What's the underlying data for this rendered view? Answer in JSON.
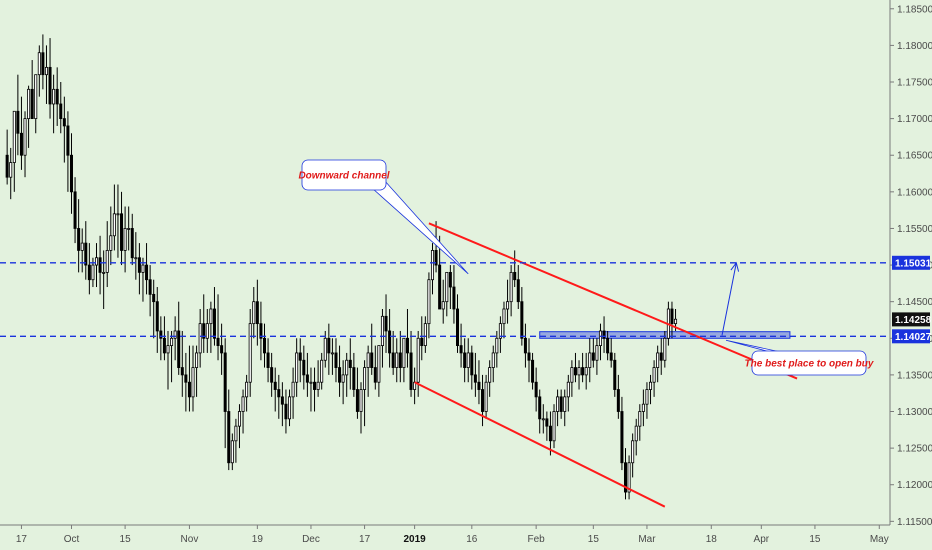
{
  "chart_data": {
    "type": "candlestick",
    "title": "",
    "xlabel": "",
    "ylabel": "",
    "ylim": [
      1.1145,
      1.1862
    ],
    "xlim": [
      -2,
      247
    ],
    "grid": false,
    "y_ticks": [
      1.115,
      1.12,
      1.125,
      1.13,
      1.135,
      1.14,
      1.145,
      1.15,
      1.155,
      1.16,
      1.165,
      1.17,
      1.175,
      1.18,
      1.185
    ],
    "y_tick_labels": [
      "1.11500",
      "1.12000",
      "1.12500",
      "1.13000",
      "1.13500",
      "1.14000",
      "1.14500",
      "1.15000",
      "1.15500",
      "1.16000",
      "1.16500",
      "1.17000",
      "1.17500",
      "1.18000",
      "1.18500"
    ],
    "x_ticks": [
      {
        "label": "17",
        "index": 4,
        "bold": false
      },
      {
        "label": "Oct",
        "index": 18,
        "bold": false
      },
      {
        "label": "15",
        "index": 33,
        "bold": false
      },
      {
        "label": "Nov",
        "index": 51,
        "bold": false
      },
      {
        "label": "19",
        "index": 70,
        "bold": false
      },
      {
        "label": "Dec",
        "index": 85,
        "bold": false
      },
      {
        "label": "17",
        "index": 100,
        "bold": false
      },
      {
        "label": "2019",
        "index": 114,
        "bold": true
      },
      {
        "label": "16",
        "index": 130,
        "bold": false
      },
      {
        "label": "Feb",
        "index": 148,
        "bold": false
      },
      {
        "label": "15",
        "index": 164,
        "bold": false
      },
      {
        "label": "Mar",
        "index": 179,
        "bold": false
      },
      {
        "label": "18",
        "index": 197,
        "bold": false
      },
      {
        "label": "Apr",
        "index": 211,
        "bold": false
      },
      {
        "label": "15",
        "index": 226,
        "bold": false
      },
      {
        "label": "May",
        "index": 244,
        "bold": false
      }
    ],
    "candles": {
      "open": [
        1.165,
        1.162,
        1.164,
        1.171,
        1.168,
        1.165,
        1.17,
        1.174,
        1.17,
        1.176,
        1.179,
        1.176,
        1.177,
        1.172,
        1.174,
        1.172,
        1.17,
        1.169,
        1.165,
        1.16,
        1.155,
        1.152,
        1.153,
        1.15,
        1.148,
        1.15,
        1.151,
        1.149,
        1.149,
        1.152,
        1.154,
        1.157,
        1.157,
        1.152,
        1.155,
        1.155,
        1.151,
        1.151,
        1.149,
        1.15,
        1.148,
        1.146,
        1.145,
        1.141,
        1.14,
        1.138,
        1.139,
        1.14,
        1.141,
        1.136,
        1.135,
        1.134,
        1.132,
        1.136,
        1.138,
        1.142,
        1.14,
        1.142,
        1.144,
        1.14,
        1.139,
        1.138,
        1.13,
        1.123,
        1.126,
        1.128,
        1.13,
        1.132,
        1.134,
        1.142,
        1.145,
        1.142,
        1.14,
        1.138,
        1.136,
        1.134,
        1.133,
        1.132,
        1.131,
        1.129,
        1.132,
        1.134,
        1.138,
        1.137,
        1.135,
        1.134,
        1.134,
        1.133,
        1.134,
        1.137,
        1.14,
        1.138,
        1.138,
        1.136,
        1.134,
        1.135,
        1.137,
        1.136,
        1.133,
        1.13,
        1.133,
        1.136,
        1.138,
        1.136,
        1.134,
        1.139,
        1.143,
        1.141,
        1.138,
        1.136,
        1.138,
        1.136,
        1.14,
        1.138,
        1.133,
        1.134,
        1.14,
        1.139,
        1.142,
        1.148,
        1.152,
        1.15,
        1.144,
        1.145,
        1.149,
        1.147,
        1.144,
        1.139,
        1.138,
        1.136,
        1.138,
        1.135,
        1.134,
        1.133,
        1.13,
        1.134,
        1.136,
        1.138,
        1.14,
        1.142,
        1.144,
        1.145,
        1.149,
        1.148,
        1.145,
        1.14,
        1.138,
        1.137,
        1.134,
        1.132,
        1.129,
        1.129,
        1.128,
        1.126,
        1.13,
        1.132,
        1.13,
        1.132,
        1.134,
        1.136,
        1.135,
        1.136,
        1.135,
        1.136,
        1.138,
        1.137,
        1.139,
        1.141,
        1.14,
        1.138,
        1.137,
        1.133,
        1.13,
        1.123,
        1.119,
        1.123,
        1.126,
        1.128,
        1.13,
        1.131,
        1.133,
        1.134,
        1.136,
        1.138,
        1.137,
        1.14,
        1.144,
        1.142
      ],
      "high": [
        1.1685,
        1.166,
        1.168,
        1.176,
        1.173,
        1.171,
        1.1745,
        1.178,
        1.176,
        1.18,
        1.1815,
        1.18,
        1.181,
        1.176,
        1.177,
        1.175,
        1.173,
        1.171,
        1.168,
        1.162,
        1.159,
        1.155,
        1.156,
        1.153,
        1.151,
        1.153,
        1.154,
        1.152,
        1.156,
        1.158,
        1.161,
        1.161,
        1.16,
        1.158,
        1.158,
        1.157,
        1.1545,
        1.153,
        1.151,
        1.153,
        1.15,
        1.148,
        1.147,
        1.143,
        1.143,
        1.141,
        1.141,
        1.143,
        1.145,
        1.141,
        1.138,
        1.139,
        1.139,
        1.139,
        1.144,
        1.146,
        1.144,
        1.145,
        1.147,
        1.146,
        1.142,
        1.14,
        1.133,
        1.127,
        1.129,
        1.131,
        1.133,
        1.135,
        1.144,
        1.147,
        1.148,
        1.145,
        1.142,
        1.14,
        1.138,
        1.136,
        1.135,
        1.134,
        1.133,
        1.133,
        1.136,
        1.14,
        1.14,
        1.139,
        1.138,
        1.136,
        1.136,
        1.137,
        1.138,
        1.141,
        1.142,
        1.14,
        1.14,
        1.139,
        1.137,
        1.138,
        1.14,
        1.138,
        1.136,
        1.134,
        1.137,
        1.139,
        1.142,
        1.139,
        1.138,
        1.144,
        1.146,
        1.144,
        1.141,
        1.14,
        1.141,
        1.14,
        1.144,
        1.141,
        1.136,
        1.141,
        1.143,
        1.143,
        1.149,
        1.153,
        1.156,
        1.154,
        1.148,
        1.149,
        1.15,
        1.15,
        1.146,
        1.142,
        1.14,
        1.14,
        1.139,
        1.138,
        1.137,
        1.135,
        1.135,
        1.137,
        1.139,
        1.141,
        1.143,
        1.145,
        1.148,
        1.15,
        1.152,
        1.15,
        1.147,
        1.142,
        1.14,
        1.138,
        1.136,
        1.133,
        1.131,
        1.13,
        1.13,
        1.131,
        1.133,
        1.133,
        1.133,
        1.135,
        1.137,
        1.138,
        1.137,
        1.138,
        1.138,
        1.14,
        1.14,
        1.14,
        1.142,
        1.143,
        1.141,
        1.14,
        1.138,
        1.135,
        1.132,
        1.125,
        1.124,
        1.127,
        1.129,
        1.131,
        1.133,
        1.134,
        1.135,
        1.137,
        1.139,
        1.14,
        1.141,
        1.145,
        1.145,
        1.144
      ],
      "low": [
        1.161,
        1.159,
        1.16,
        1.165,
        1.163,
        1.162,
        1.166,
        1.17,
        1.168,
        1.173,
        1.174,
        1.172,
        1.17,
        1.168,
        1.169,
        1.168,
        1.164,
        1.16,
        1.157,
        1.153,
        1.149,
        1.149,
        1.148,
        1.146,
        1.147,
        1.147,
        1.146,
        1.144,
        1.147,
        1.15,
        1.152,
        1.151,
        1.15,
        1.149,
        1.152,
        1.15,
        1.148,
        1.146,
        1.145,
        1.146,
        1.143,
        1.14,
        1.138,
        1.137,
        1.137,
        1.133,
        1.134,
        1.137,
        1.135,
        1.132,
        1.13,
        1.13,
        1.13,
        1.132,
        1.136,
        1.138,
        1.138,
        1.138,
        1.139,
        1.137,
        1.135,
        1.125,
        1.122,
        1.122,
        1.123,
        1.125,
        1.127,
        1.13,
        1.132,
        1.14,
        1.139,
        1.137,
        1.136,
        1.134,
        1.132,
        1.13,
        1.129,
        1.128,
        1.127,
        1.128,
        1.129,
        1.132,
        1.134,
        1.133,
        1.132,
        1.13,
        1.13,
        1.132,
        1.133,
        1.136,
        1.135,
        1.135,
        1.134,
        1.132,
        1.131,
        1.132,
        1.133,
        1.132,
        1.129,
        1.127,
        1.128,
        1.132,
        1.135,
        1.133,
        1.132,
        1.136,
        1.138,
        1.136,
        1.135,
        1.134,
        1.134,
        1.134,
        1.136,
        1.132,
        1.131,
        1.132,
        1.137,
        1.138,
        1.14,
        1.146,
        1.149,
        1.144,
        1.142,
        1.143,
        1.144,
        1.142,
        1.138,
        1.136,
        1.134,
        1.134,
        1.133,
        1.132,
        1.131,
        1.128,
        1.129,
        1.132,
        1.134,
        1.136,
        1.138,
        1.14,
        1.142,
        1.143,
        1.147,
        1.144,
        1.139,
        1.136,
        1.134,
        1.133,
        1.13,
        1.127,
        1.127,
        1.126,
        1.124,
        1.125,
        1.128,
        1.129,
        1.128,
        1.13,
        1.132,
        1.134,
        1.133,
        1.134,
        1.133,
        1.134,
        1.136,
        1.135,
        1.137,
        1.138,
        1.137,
        1.136,
        1.132,
        1.129,
        1.122,
        1.118,
        1.118,
        1.121,
        1.124,
        1.126,
        1.128,
        1.129,
        1.131,
        1.132,
        1.134,
        1.135,
        1.136,
        1.139,
        1.14,
        1.141
      ],
      "close": [
        1.162,
        1.164,
        1.171,
        1.168,
        1.165,
        1.17,
        1.174,
        1.17,
        1.176,
        1.179,
        1.176,
        1.177,
        1.172,
        1.174,
        1.172,
        1.17,
        1.169,
        1.165,
        1.16,
        1.155,
        1.152,
        1.153,
        1.15,
        1.148,
        1.15,
        1.151,
        1.149,
        1.149,
        1.152,
        1.154,
        1.157,
        1.157,
        1.152,
        1.155,
        1.155,
        1.151,
        1.151,
        1.149,
        1.15,
        1.148,
        1.146,
        1.145,
        1.141,
        1.14,
        1.138,
        1.139,
        1.14,
        1.141,
        1.136,
        1.135,
        1.134,
        1.132,
        1.136,
        1.138,
        1.142,
        1.14,
        1.142,
        1.144,
        1.14,
        1.139,
        1.138,
        1.13,
        1.123,
        1.126,
        1.128,
        1.13,
        1.132,
        1.134,
        1.142,
        1.145,
        1.142,
        1.14,
        1.138,
        1.136,
        1.134,
        1.133,
        1.132,
        1.131,
        1.129,
        1.132,
        1.134,
        1.138,
        1.137,
        1.135,
        1.134,
        1.134,
        1.133,
        1.134,
        1.137,
        1.14,
        1.138,
        1.138,
        1.136,
        1.134,
        1.135,
        1.137,
        1.136,
        1.133,
        1.13,
        1.133,
        1.136,
        1.138,
        1.136,
        1.134,
        1.139,
        1.143,
        1.141,
        1.138,
        1.136,
        1.138,
        1.136,
        1.14,
        1.138,
        1.133,
        1.134,
        1.14,
        1.139,
        1.142,
        1.148,
        1.152,
        1.15,
        1.144,
        1.145,
        1.149,
        1.147,
        1.144,
        1.139,
        1.138,
        1.136,
        1.138,
        1.135,
        1.134,
        1.133,
        1.13,
        1.134,
        1.136,
        1.138,
        1.14,
        1.142,
        1.144,
        1.145,
        1.149,
        1.148,
        1.145,
        1.14,
        1.138,
        1.137,
        1.134,
        1.132,
        1.129,
        1.129,
        1.128,
        1.126,
        1.13,
        1.132,
        1.13,
        1.132,
        1.134,
        1.136,
        1.135,
        1.136,
        1.135,
        1.136,
        1.138,
        1.137,
        1.139,
        1.141,
        1.14,
        1.138,
        1.137,
        1.133,
        1.13,
        1.123,
        1.119,
        1.123,
        1.126,
        1.128,
        1.13,
        1.131,
        1.133,
        1.134,
        1.136,
        1.138,
        1.137,
        1.14,
        1.144,
        1.142,
        1.1426
      ]
    },
    "levels": [
      {
        "value": 1.15031,
        "label": "1.15031",
        "style": "dashed",
        "color": "#1a33dd"
      },
      {
        "value": 1.14027,
        "label": "1.14027",
        "style": "dashed",
        "color": "#1a33dd"
      }
    ],
    "last_price": {
      "value": 1.14258,
      "label": "1.14258"
    },
    "zone": {
      "x_start": 149,
      "x_end": 219,
      "y_low": 1.14,
      "y_high": 1.1409
    },
    "trendlines": [
      {
        "name": "channel-upper",
        "from": [
          118,
          1.1557
        ],
        "to": [
          221,
          1.1345
        ],
        "color": "#ff1a1a"
      },
      {
        "name": "channel-lower",
        "from": [
          114,
          1.134
        ],
        "to": [
          184,
          1.117
        ],
        "color": "#ff1a1a"
      }
    ],
    "arrow": {
      "from": [
        200,
        1.1404
      ],
      "to": [
        204,
        1.1503
      ],
      "color": "#1a33dd"
    },
    "annotations": [
      {
        "name": "downward-channel",
        "text": "Downward channel",
        "anchor": [
          129,
          1.1488
        ]
      },
      {
        "name": "best-place",
        "text": "The best place to open buy",
        "anchor": [
          200,
          1.14
        ]
      }
    ],
    "colors": {
      "background": "#e3f2de",
      "candle": "#000000",
      "channel": "#ff1a1a",
      "level": "#1a33dd",
      "zone": "#5a6ee0"
    }
  }
}
